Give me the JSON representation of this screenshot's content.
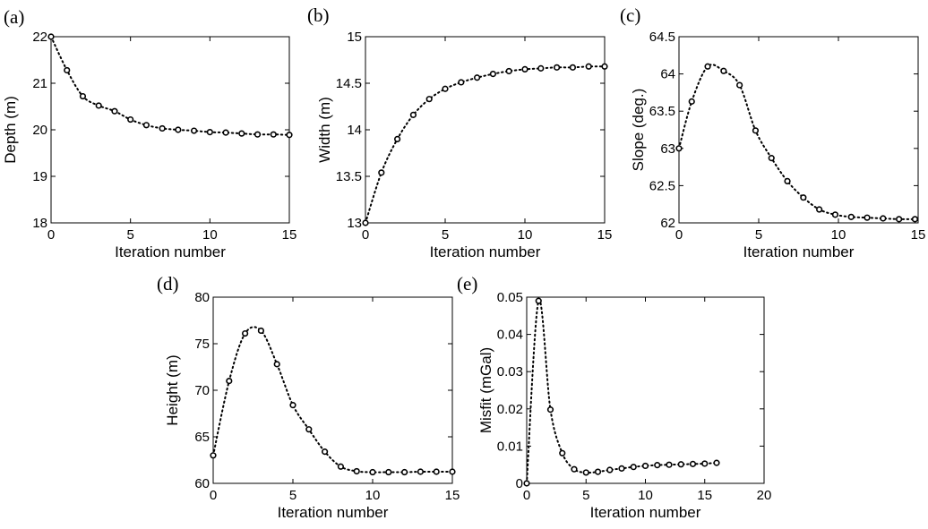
{
  "chart_data": [
    {
      "id": "a",
      "type": "line",
      "panel_label": "(a)",
      "xlabel": "Iteration number",
      "ylabel": "Depth (m)",
      "xlim": [
        0,
        15
      ],
      "ylim": [
        18,
        22
      ],
      "xticks": [
        0,
        5,
        10,
        15
      ],
      "yticks": [
        18,
        19,
        20,
        21,
        22
      ],
      "x": [
        0,
        1,
        2,
        3,
        4,
        5,
        6,
        7,
        8,
        9,
        10,
        11,
        12,
        13,
        14,
        15
      ],
      "values": [
        22.0,
        21.28,
        20.72,
        20.52,
        20.4,
        20.22,
        20.1,
        20.03,
        20.0,
        19.98,
        19.95,
        19.94,
        19.92,
        19.9,
        19.9,
        19.89
      ]
    },
    {
      "id": "b",
      "type": "line",
      "panel_label": "(b)",
      "xlabel": "Iteration number",
      "ylabel": "Width (m)",
      "xlim": [
        0,
        15
      ],
      "ylim": [
        13,
        15
      ],
      "xticks": [
        0,
        5,
        10,
        15
      ],
      "yticks": [
        13,
        13.5,
        14,
        14.5,
        15
      ],
      "x": [
        0,
        1,
        2,
        3,
        4,
        5,
        6,
        7,
        8,
        9,
        10,
        11,
        12,
        13,
        14,
        15
      ],
      "values": [
        13.0,
        13.54,
        13.9,
        14.16,
        14.33,
        14.44,
        14.51,
        14.56,
        14.6,
        14.63,
        14.65,
        14.66,
        14.67,
        14.67,
        14.68,
        14.68
      ]
    },
    {
      "id": "c",
      "type": "line",
      "panel_label": "(c)",
      "xlabel": "Iteration number",
      "ylabel": "Slope (deg.)",
      "xlim": [
        0,
        15
      ],
      "ylim": [
        62,
        64.5
      ],
      "xticks": [
        0,
        5,
        10,
        15
      ],
      "yticks": [
        62,
        62.5,
        63,
        63.5,
        64,
        64.5
      ],
      "x": [
        0,
        0.8,
        1.8,
        2.8,
        3.8,
        4.8,
        5.8,
        6.8,
        7.8,
        8.8,
        9.8,
        10.8,
        11.8,
        12.8,
        13.8,
        14.8
      ],
      "values": [
        63.0,
        63.63,
        64.1,
        64.04,
        63.85,
        63.24,
        62.87,
        62.56,
        62.34,
        62.18,
        62.11,
        62.08,
        62.07,
        62.06,
        62.05,
        62.05
      ]
    },
    {
      "id": "d",
      "type": "line",
      "panel_label": "(d)",
      "xlabel": "Iteration number",
      "ylabel": "Height (m)",
      "xlim": [
        0,
        15
      ],
      "ylim": [
        60,
        80
      ],
      "xticks": [
        0,
        5,
        10,
        15
      ],
      "yticks": [
        60,
        65,
        70,
        75,
        80
      ],
      "x": [
        0,
        1,
        2,
        3,
        4,
        5,
        6,
        7,
        8,
        9,
        10,
        11,
        12,
        13,
        14,
        15
      ],
      "values": [
        63.0,
        71.0,
        76.1,
        76.4,
        72.8,
        68.4,
        65.8,
        63.4,
        61.8,
        61.3,
        61.2,
        61.2,
        61.2,
        61.25,
        61.25,
        61.25
      ]
    },
    {
      "id": "e",
      "type": "line",
      "panel_label": "(e)",
      "xlabel": "Iteration number",
      "ylabel": "Misfit (mGal)",
      "xlim": [
        0,
        20
      ],
      "ylim": [
        0,
        0.05
      ],
      "xticks": [
        0,
        5,
        10,
        15,
        20
      ],
      "yticks": [
        0,
        0.01,
        0.02,
        0.03,
        0.04,
        0.05
      ],
      "x": [
        0,
        1,
        2,
        3,
        4,
        5,
        6,
        7,
        8,
        9,
        10,
        11,
        12,
        13,
        14,
        15,
        16
      ],
      "values": [
        0.0,
        0.049,
        0.0198,
        0.0081,
        0.0038,
        0.0029,
        0.0031,
        0.0036,
        0.004,
        0.0044,
        0.0047,
        0.0049,
        0.005,
        0.0051,
        0.0052,
        0.0053,
        0.0055
      ]
    }
  ]
}
